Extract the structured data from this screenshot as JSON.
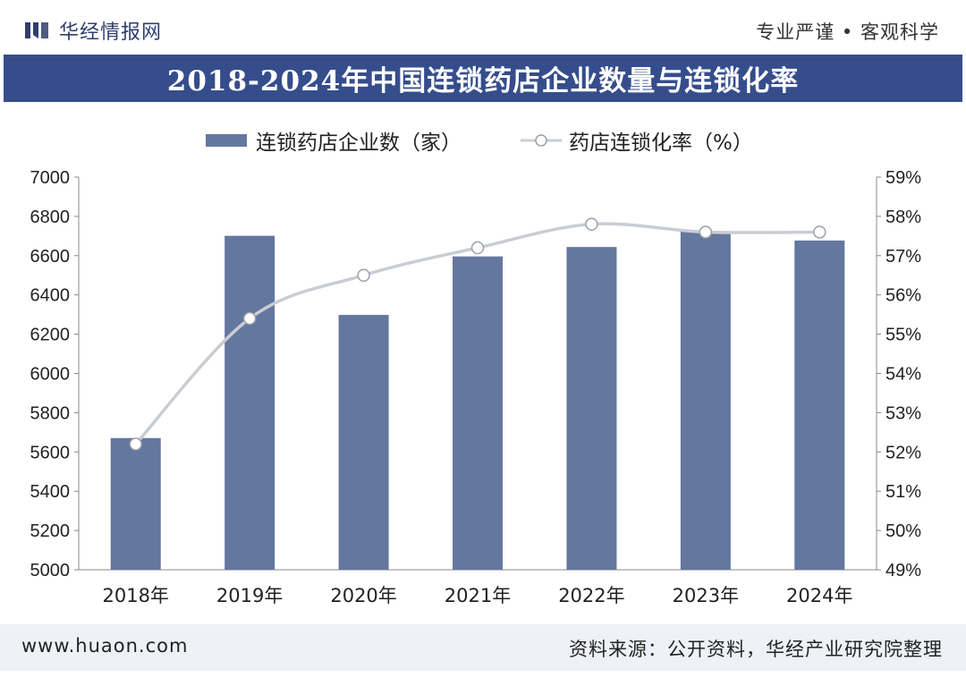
{
  "header": {
    "brand": "华经情报网",
    "slogan": "专业严谨 • 客观科学"
  },
  "title": "2018-2024年中国连锁药店企业数量与连锁化率",
  "colors": {
    "banner": "#364d8c",
    "bar": "#64779f",
    "line": "#c9cdd3",
    "marker_fill": "#ffffff",
    "marker_stroke": "#9aa0a8"
  },
  "chart_data": {
    "type": "bar+line",
    "categories": [
      "2018年",
      "2019年",
      "2020年",
      "2021年",
      "2022年",
      "2023年",
      "2024年"
    ],
    "series": [
      {
        "name": "连锁药店企业数（家）",
        "type": "bar",
        "axis": "left",
        "values": [
          5671,
          6701,
          6298,
          6596,
          6644,
          6725,
          6677
        ]
      },
      {
        "name": "药店连锁化率（%）",
        "type": "line",
        "axis": "right",
        "values": [
          52.2,
          55.4,
          56.5,
          57.2,
          57.8,
          57.6,
          57.6
        ]
      }
    ],
    "left_axis": {
      "min": 5000,
      "max": 7000,
      "ticks": [
        "5000",
        "5200",
        "5400",
        "5600",
        "5800",
        "6000",
        "6200",
        "6400",
        "6600",
        "6800",
        "7000"
      ]
    },
    "right_axis": {
      "min": 49,
      "max": 59,
      "ticks": [
        "49%",
        "50%",
        "51%",
        "52%",
        "53%",
        "54%",
        "55%",
        "56%",
        "57%",
        "58%",
        "59%"
      ]
    }
  },
  "footer": {
    "url": "www.huaon.com",
    "source": "资料来源：公开资料，华经产业研究院整理"
  }
}
